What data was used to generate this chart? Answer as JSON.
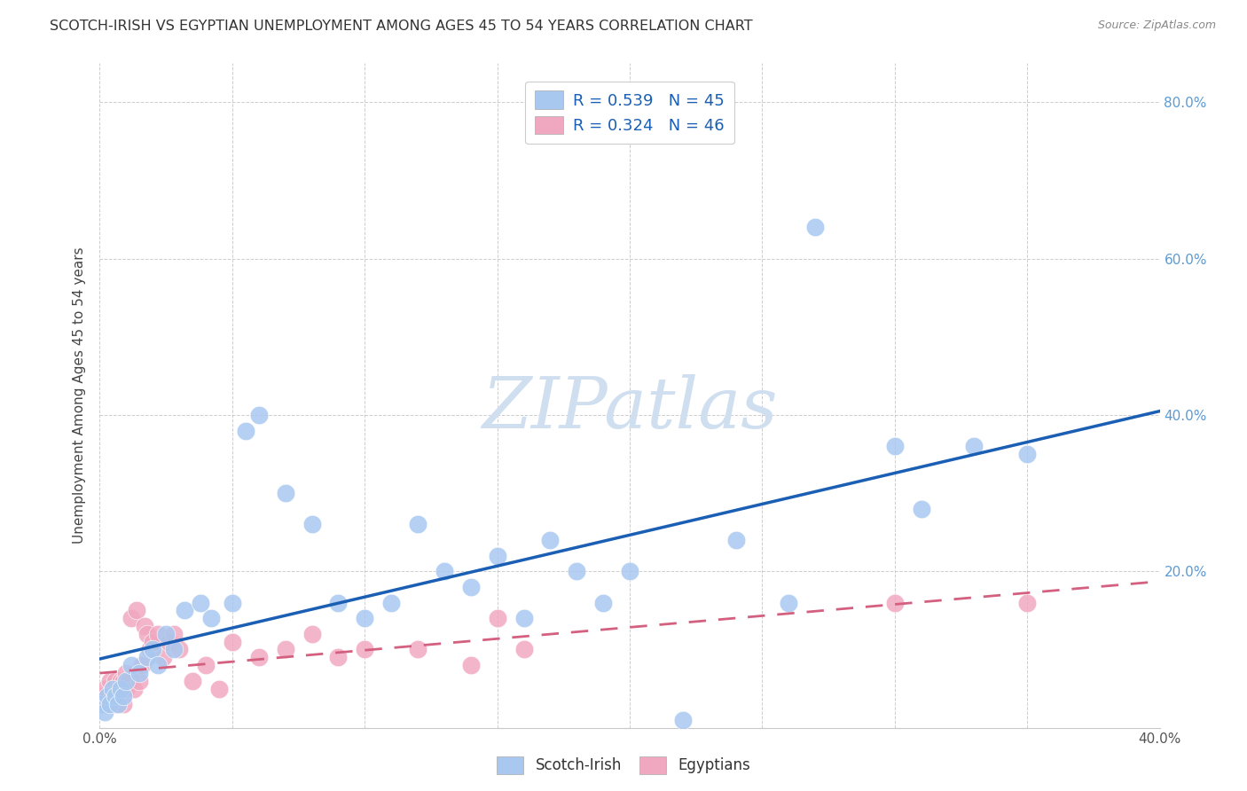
{
  "title": "SCOTCH-IRISH VS EGYPTIAN UNEMPLOYMENT AMONG AGES 45 TO 54 YEARS CORRELATION CHART",
  "source": "Source: ZipAtlas.com",
  "ylabel": "Unemployment Among Ages 45 to 54 years",
  "xlim": [
    0.0,
    0.4
  ],
  "ylim": [
    0.0,
    0.85
  ],
  "xticks": [
    0.0,
    0.05,
    0.1,
    0.15,
    0.2,
    0.25,
    0.3,
    0.35,
    0.4
  ],
  "yticks": [
    0.0,
    0.2,
    0.4,
    0.6,
    0.8
  ],
  "scotch_irish_R": 0.539,
  "scotch_irish_N": 45,
  "egyptian_R": 0.324,
  "egyptian_N": 46,
  "scotch_irish_color": "#a8c8f0",
  "egyptian_color": "#f0a8c0",
  "scotch_irish_line_color": "#1a5fb4",
  "egyptian_line_color": "#d46080",
  "background_color": "#ffffff",
  "grid_color": "#c8c8c8",
  "watermark_color": "#d0dff0",
  "scotch_irish_x": [
    0.001,
    0.002,
    0.003,
    0.004,
    0.005,
    0.006,
    0.007,
    0.008,
    0.009,
    0.01,
    0.012,
    0.015,
    0.018,
    0.02,
    0.022,
    0.025,
    0.028,
    0.032,
    0.038,
    0.042,
    0.05,
    0.055,
    0.06,
    0.07,
    0.08,
    0.09,
    0.1,
    0.11,
    0.12,
    0.13,
    0.14,
    0.15,
    0.16,
    0.17,
    0.18,
    0.19,
    0.2,
    0.22,
    0.24,
    0.26,
    0.27,
    0.3,
    0.31,
    0.33,
    0.35
  ],
  "scotch_irish_y": [
    0.03,
    0.02,
    0.04,
    0.03,
    0.05,
    0.04,
    0.03,
    0.05,
    0.04,
    0.06,
    0.08,
    0.07,
    0.09,
    0.1,
    0.08,
    0.12,
    0.1,
    0.15,
    0.16,
    0.14,
    0.16,
    0.38,
    0.4,
    0.3,
    0.26,
    0.16,
    0.14,
    0.16,
    0.26,
    0.2,
    0.18,
    0.22,
    0.14,
    0.24,
    0.2,
    0.16,
    0.2,
    0.01,
    0.24,
    0.16,
    0.64,
    0.36,
    0.28,
    0.36,
    0.35
  ],
  "egyptian_x": [
    0.001,
    0.002,
    0.003,
    0.004,
    0.005,
    0.005,
    0.006,
    0.006,
    0.007,
    0.007,
    0.008,
    0.008,
    0.009,
    0.009,
    0.01,
    0.01,
    0.011,
    0.012,
    0.013,
    0.014,
    0.015,
    0.016,
    0.017,
    0.018,
    0.019,
    0.02,
    0.022,
    0.024,
    0.026,
    0.028,
    0.03,
    0.035,
    0.04,
    0.045,
    0.05,
    0.06,
    0.07,
    0.08,
    0.09,
    0.1,
    0.12,
    0.14,
    0.15,
    0.16,
    0.3,
    0.35
  ],
  "egyptian_y": [
    0.04,
    0.05,
    0.03,
    0.06,
    0.04,
    0.05,
    0.03,
    0.06,
    0.04,
    0.05,
    0.06,
    0.05,
    0.03,
    0.06,
    0.05,
    0.07,
    0.06,
    0.14,
    0.05,
    0.15,
    0.06,
    0.08,
    0.13,
    0.12,
    0.1,
    0.11,
    0.12,
    0.09,
    0.11,
    0.12,
    0.1,
    0.06,
    0.08,
    0.05,
    0.11,
    0.09,
    0.1,
    0.12,
    0.09,
    0.1,
    0.1,
    0.08,
    0.14,
    0.1,
    0.16,
    0.16
  ]
}
